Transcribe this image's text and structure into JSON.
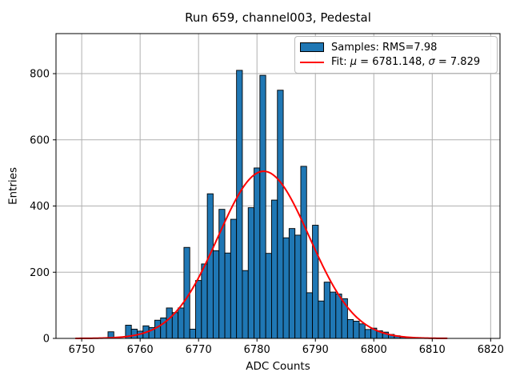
{
  "title": "Run 659, channel003, Pedestal",
  "xlabel": "ADC Counts",
  "ylabel": "Entries",
  "legend": {
    "samples_label": "Samples: RMS=7.98",
    "fit_prefix": "Fit: ",
    "fit_mu_symbol": "μ",
    "fit_mu_value": " = 6781.148, ",
    "fit_sigma_symbol": "σ",
    "fit_sigma_value": " = 7.829"
  },
  "colors": {
    "bar_fill": "#1f77b4",
    "bar_edge": "#000000",
    "fit_line": "#ff0000",
    "grid": "#b0b0b0",
    "spine": "#000000",
    "tick_label": "#000000",
    "background": "#ffffff"
  },
  "chart_data": {
    "type": "bar",
    "title": "Run 659, channel003, Pedestal",
    "xlabel": "ADC Counts",
    "ylabel": "Entries",
    "grid": true,
    "legend_entries": [
      "Samples: RMS=7.98",
      "Fit: μ = 6781.148, σ = 7.829"
    ],
    "legend_position": "upper right",
    "bin_width": 1,
    "bin_centers": [
      6755,
      6758,
      6759,
      6760,
      6761,
      6762,
      6763,
      6764,
      6765,
      6766,
      6767,
      6768,
      6769,
      6770,
      6771,
      6772,
      6773,
      6774,
      6775,
      6776,
      6777,
      6778,
      6779,
      6780,
      6781,
      6782,
      6783,
      6784,
      6785,
      6786,
      6787,
      6788,
      6789,
      6790,
      6791,
      6792,
      6793,
      6794,
      6795,
      6796,
      6797,
      6798,
      6799,
      6800,
      6801,
      6802,
      6803,
      6804,
      6805
    ],
    "counts": [
      20,
      40,
      28,
      22,
      38,
      33,
      55,
      62,
      92,
      78,
      92,
      275,
      28,
      175,
      225,
      437,
      265,
      390,
      258,
      360,
      810,
      205,
      395,
      515,
      795,
      257,
      418,
      750,
      304,
      332,
      312,
      520,
      138,
      342,
      113,
      170,
      140,
      134,
      120,
      57,
      52,
      44,
      27,
      31,
      23,
      19,
      12,
      8,
      4
    ],
    "fit": {
      "mu": 6781.148,
      "sigma": 7.829,
      "amplitude": 505,
      "x_start": 6749,
      "x_end": 6812.5
    },
    "rms": 7.98,
    "xlim": [
      6745.6,
      6821.6
    ],
    "ylim": [
      0,
      921
    ],
    "xticks": [
      6750,
      6760,
      6770,
      6780,
      6790,
      6800,
      6810,
      6820
    ],
    "yticks": [
      0,
      200,
      400,
      600,
      800
    ]
  }
}
